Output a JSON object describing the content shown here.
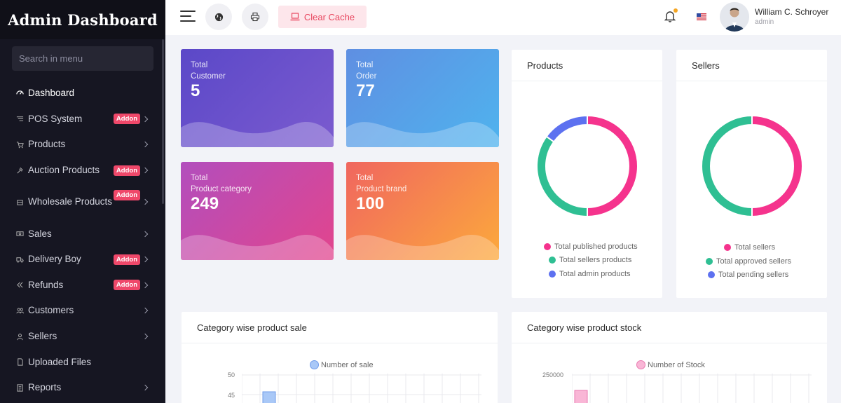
{
  "sidebar": {
    "title": "Admin Dashboard",
    "search_placeholder": "Search in menu",
    "items": [
      {
        "label": "Dashboard",
        "icon": "dashboard-icon"
      },
      {
        "label": "POS System",
        "icon": "pos-icon",
        "badge": "Addon"
      },
      {
        "label": "Products",
        "icon": "cart-icon"
      },
      {
        "label": "Auction Products",
        "icon": "gavel-icon",
        "badge": "Addon"
      },
      {
        "label": "Wholesale Products",
        "icon": "wholesale-icon",
        "badge": "Addon"
      },
      {
        "label": "Sales",
        "icon": "money-icon"
      },
      {
        "label": "Delivery Boy",
        "icon": "truck-icon",
        "badge": "Addon"
      },
      {
        "label": "Refunds",
        "icon": "refund-icon",
        "badge": "Addon"
      },
      {
        "label": "Customers",
        "icon": "users-icon"
      },
      {
        "label": "Sellers",
        "icon": "user-icon"
      },
      {
        "label": "Uploaded Files",
        "icon": "folder-icon"
      },
      {
        "label": "Reports",
        "icon": "report-icon"
      }
    ]
  },
  "topbar": {
    "clear_cache": "Clear Cache",
    "user_name": "William C. Schroyer",
    "user_role": "admin"
  },
  "stats": [
    {
      "label": "Total\nCustomer",
      "value": "5"
    },
    {
      "label": "Total\nOrder",
      "value": "77"
    },
    {
      "label": "Total\nProduct category",
      "value": "249"
    },
    {
      "label": "Total\nProduct brand",
      "value": "100"
    }
  ],
  "colors": {
    "pink": "#f5338d",
    "green": "#2fbf93",
    "blue": "#5d71f0",
    "badge": "#ef486a"
  },
  "products_panel": {
    "title": "Products",
    "legend": [
      "Total published products",
      "Total sellers products",
      "Total admin products"
    ]
  },
  "sellers_panel": {
    "title": "Sellers",
    "legend": [
      "Total sellers",
      "Total approved sellers",
      "Total pending sellers"
    ]
  },
  "sale_panel": {
    "title": "Category wise product sale",
    "legend": "Number of sale",
    "ticks": [
      "50",
      "45"
    ]
  },
  "stock_panel": {
    "title": "Category wise product stock",
    "legend": "Number of Stock",
    "ticks": [
      "250000"
    ]
  },
  "chart_data": [
    {
      "type": "pie",
      "title": "Products",
      "labels": [
        "Total published products",
        "Total sellers products",
        "Total admin products"
      ],
      "values": [
        50,
        35,
        15
      ]
    },
    {
      "type": "pie",
      "title": "Sellers",
      "labels": [
        "Total sellers",
        "Total approved sellers",
        "Total pending sellers"
      ],
      "values": [
        50,
        50,
        0
      ]
    }
  ]
}
